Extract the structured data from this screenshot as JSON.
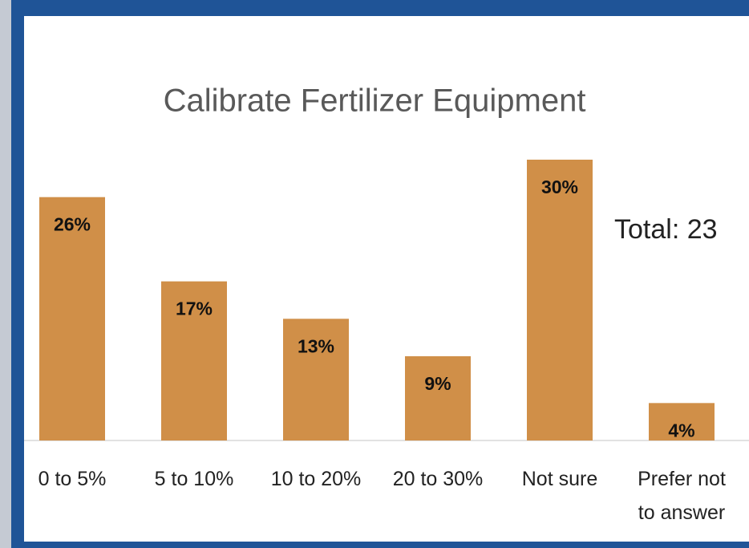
{
  "chart_data": {
    "type": "bar",
    "title": "Calibrate Fertilizer Equipment",
    "categories": [
      "0 to 5%",
      "5 to 10%",
      "10 to 20%",
      "20 to 30%",
      "Not sure",
      "Prefer not to answer"
    ],
    "values": [
      26,
      17,
      13,
      9,
      30,
      4
    ],
    "value_labels": [
      "26%",
      "17%",
      "13%",
      "9%",
      "30%",
      "4%"
    ],
    "color": "#d08f48",
    "annotation": "Total: 23"
  }
}
